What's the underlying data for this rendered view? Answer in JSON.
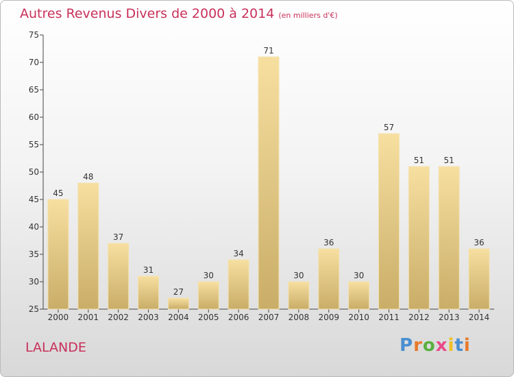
{
  "header": {
    "title": "Autres Revenus Divers de 2000 à 2014",
    "subtitle": "(en milliers d'€)"
  },
  "footer": {
    "place": "LALANDE",
    "brand": "Proxiti",
    "brand_colors": [
      "#4a8fd0",
      "#e87a2a",
      "#58b040",
      "#e84a8a",
      "#f0c020",
      "#4a8fd0",
      "#e87a2a"
    ]
  },
  "chart_data": {
    "type": "bar",
    "title": "Autres Revenus Divers de 2000 à 2014",
    "subtitle": "(en milliers d'€)",
    "xlabel": "",
    "ylabel": "",
    "categories": [
      "2000",
      "2001",
      "2002",
      "2003",
      "2004",
      "2005",
      "2006",
      "2007",
      "2008",
      "2009",
      "2010",
      "2011",
      "2012",
      "2013",
      "2014"
    ],
    "values": [
      45,
      48,
      37,
      31,
      27,
      30,
      34,
      71,
      30,
      36,
      30,
      57,
      51,
      51,
      36
    ],
    "ylim": [
      25,
      75
    ],
    "yticks": [
      25,
      30,
      35,
      40,
      45,
      50,
      55,
      60,
      65,
      70,
      75
    ],
    "grid": false,
    "bar_color_top": "#f7dfa0",
    "bar_color_bottom": "#c9ad68"
  }
}
